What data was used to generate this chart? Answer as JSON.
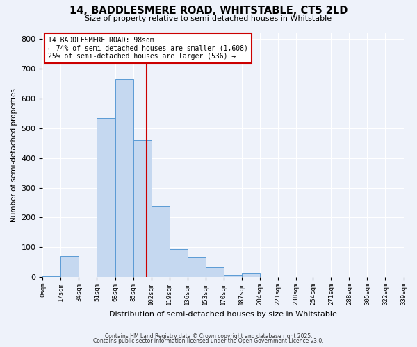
{
  "title": "14, BADDLESMERE ROAD, WHITSTABLE, CT5 2LD",
  "subtitle": "Size of property relative to semi-detached houses in Whitstable",
  "xlabel": "Distribution of semi-detached houses by size in Whitstable",
  "ylabel": "Number of semi-detached properties",
  "footnote1": "Contains HM Land Registry data © Crown copyright and database right 2025.",
  "footnote2": "Contains public sector information licensed under the Open Government Licence v3.0.",
  "bin_edges": [
    0,
    17,
    34,
    51,
    68,
    85,
    102,
    119,
    136,
    153,
    170,
    187,
    204,
    221,
    238,
    254,
    271,
    288,
    305,
    322,
    339
  ],
  "bin_labels": [
    "0sqm",
    "17sqm",
    "34sqm",
    "51sqm",
    "68sqm",
    "85sqm",
    "102sqm",
    "119sqm",
    "136sqm",
    "153sqm",
    "170sqm",
    "187sqm",
    "204sqm",
    "221sqm",
    "238sqm",
    "254sqm",
    "271sqm",
    "288sqm",
    "305sqm",
    "322sqm",
    "339sqm"
  ],
  "counts": [
    3,
    70,
    0,
    535,
    665,
    460,
    238,
    95,
    65,
    34,
    7,
    13,
    1,
    0,
    0,
    0,
    0,
    0,
    0,
    0
  ],
  "bar_color": "#c5d8f0",
  "bar_edge_color": "#5b9bd5",
  "vline_color": "#cc0000",
  "vline_x": 98,
  "annotation_line1": "14 BADDLESMERE ROAD: 98sqm",
  "annotation_line2": "← 74% of semi-detached houses are smaller (1,608)",
  "annotation_line3": "25% of semi-detached houses are larger (536) →",
  "annotation_box_edge_color": "#cc0000",
  "background_color": "#eef2fa",
  "grid_color": "#ffffff",
  "ylim": [
    0,
    820
  ],
  "yticks": [
    0,
    100,
    200,
    300,
    400,
    500,
    600,
    700,
    800
  ]
}
